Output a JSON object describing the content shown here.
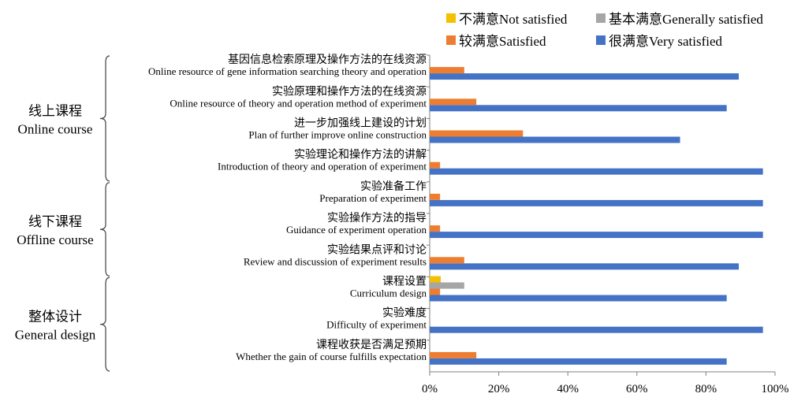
{
  "colors": {
    "not_satisfied": "#f5c000",
    "generally_satisfied": "#a6a6a6",
    "satisfied": "#ed7d31",
    "very_satisfied": "#4472c4"
  },
  "chart_data": {
    "type": "bar",
    "orientation": "horizontal",
    "xlim": [
      0,
      100
    ],
    "x_ticks": [
      "0%",
      "20%",
      "40%",
      "60%",
      "80%",
      "100%"
    ],
    "legend": [
      {
        "key": "not_satisfied",
        "label": "不满意Not satisfied"
      },
      {
        "key": "generally_satisfied",
        "label": "基本满意Generally satisfied"
      },
      {
        "key": "satisfied",
        "label": "较满意Satisfied"
      },
      {
        "key": "very_satisfied",
        "label": "很满意Very satisfied"
      }
    ],
    "groups": [
      {
        "zh": "线上课程",
        "en": "Online course",
        "first": 0,
        "last": 3
      },
      {
        "zh": "线下课程",
        "en": "Offline course",
        "first": 4,
        "last": 6
      },
      {
        "zh": "整体设计",
        "en": "General design",
        "first": 7,
        "last": 9
      }
    ],
    "categories": [
      {
        "zh": "基因信息检索原理及操作方法的在线资源",
        "en": "Online resource of gene information searching theory and operation"
      },
      {
        "zh": "实验原理和操作方法的在线资源",
        "en": "Online resource of theory and operation method of experiment"
      },
      {
        "zh": "进一步加强线上建设的计划",
        "en": "Plan of further improve online construction"
      },
      {
        "zh": "实验理论和操作方法的讲解",
        "en": "Introduction of theory and operation of experiment"
      },
      {
        "zh": "实验准备工作",
        "en": "Preparation of experiment"
      },
      {
        "zh": "实验操作方法的指导",
        "en": "Guidance of experiment operation"
      },
      {
        "zh": "实验结果点评和讨论",
        "en": "Review and discussion of experiment results"
      },
      {
        "zh": "课程设置",
        "en": "Curriculum design"
      },
      {
        "zh": "实验难度",
        "en": "Difficulty of experiment"
      },
      {
        "zh": "课程收获是否满足预期",
        "en": "Whether the gain of course fulfills expectation"
      }
    ],
    "series": [
      {
        "key": "not_satisfied",
        "values": [
          0,
          0,
          0,
          0,
          0,
          0,
          0,
          3.2,
          0,
          0
        ]
      },
      {
        "key": "generally_satisfied",
        "values": [
          0,
          0,
          0,
          0,
          0,
          0,
          0,
          10,
          0,
          0
        ]
      },
      {
        "key": "satisfied",
        "values": [
          10,
          13.5,
          27,
          3,
          3,
          3,
          10,
          3,
          0,
          13.5
        ]
      },
      {
        "key": "very_satisfied",
        "values": [
          89.5,
          86,
          72.5,
          96.5,
          96.5,
          96.5,
          89.5,
          86,
          96.5,
          86
        ]
      }
    ]
  }
}
